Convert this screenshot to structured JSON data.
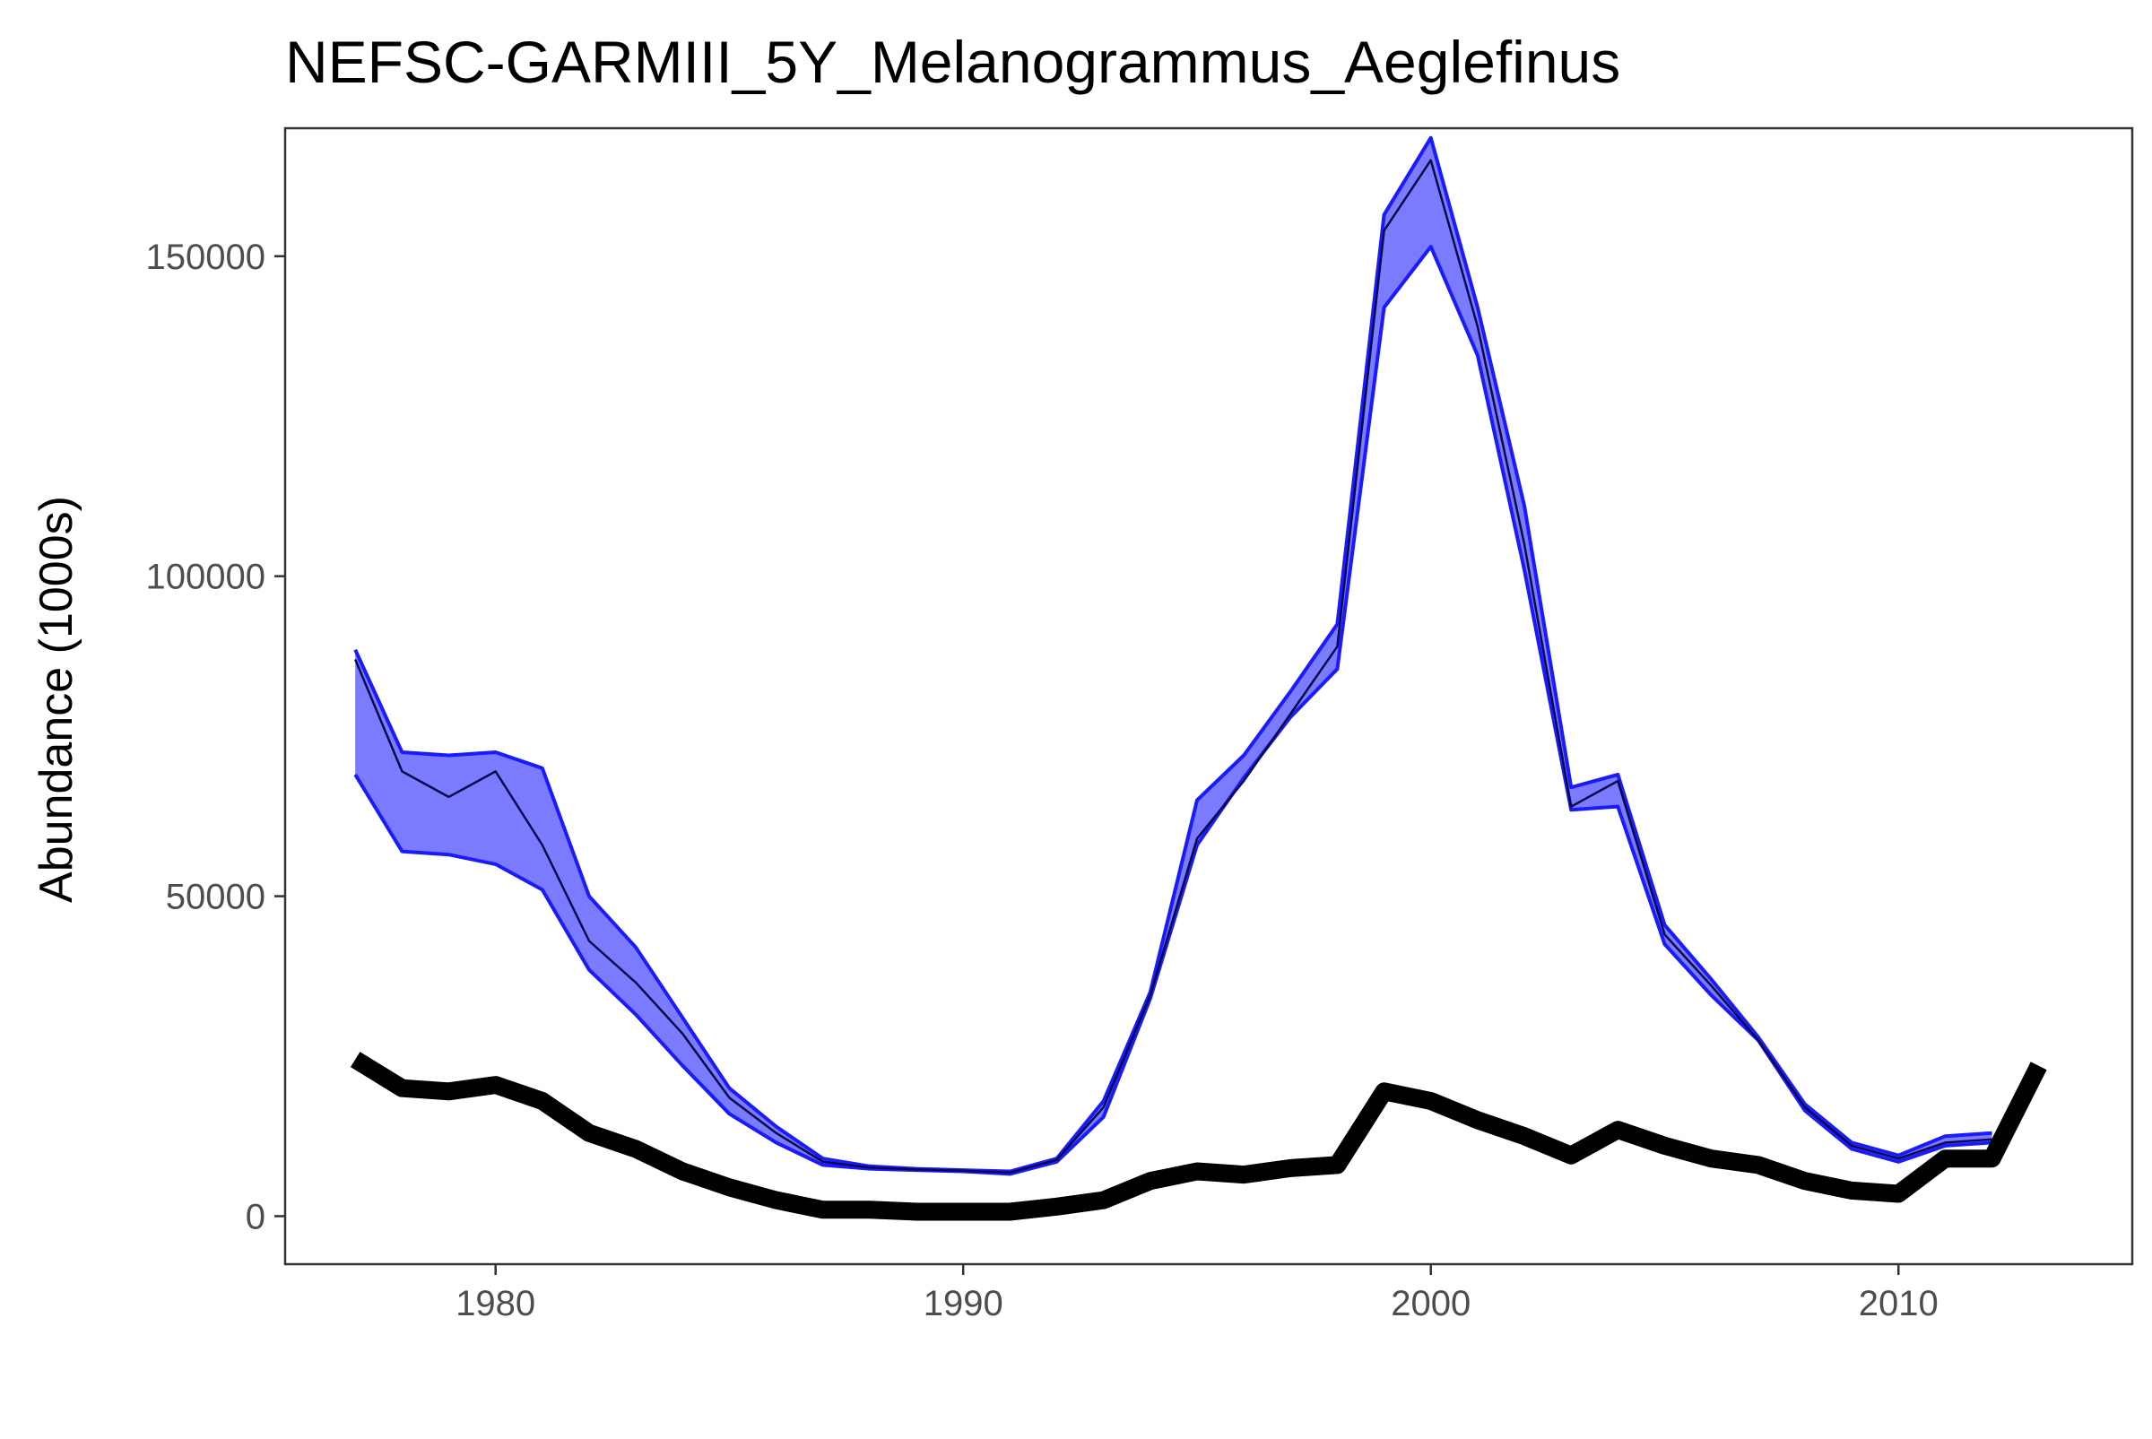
{
  "chart_data": {
    "type": "line",
    "title": "NEFSC-GARMIII_5Y_Melanogrammus_Aeglefinus",
    "xlabel": "",
    "ylabel": "Abundance (1000s)",
    "xlim": [
      1975.5,
      2015
    ],
    "ylim": [
      -7500,
      170000
    ],
    "xticks": [
      1980,
      1990,
      2000,
      2010
    ],
    "yticks": [
      0,
      50000,
      100000,
      150000
    ],
    "xtick_labels": [
      "1980",
      "1990",
      "2000",
      "2010"
    ],
    "ytick_labels": [
      "0",
      "50000",
      "100000",
      "150000"
    ],
    "grid": false,
    "legend": "none",
    "colors": {
      "band_fill": "#7b7bff",
      "band_edge": "#1a1aff",
      "estimate_line": "#0a0a4a",
      "observed_line": "#000000",
      "panel_border": "#333333"
    },
    "estimate_band": {
      "x": [
        1977,
        1978,
        1979,
        1980,
        1981,
        1982,
        1983,
        1984,
        1985,
        1986,
        1987,
        1988,
        1989,
        1990,
        1991,
        1992,
        1993,
        1994,
        1995,
        1996,
        1997,
        1998,
        1999,
        2000,
        2001,
        2002,
        2003,
        2004,
        2005,
        2006,
        2007,
        2008,
        2009,
        2010,
        2011,
        2012
      ],
      "upper": [
        88500,
        72500,
        72000,
        72500,
        70000,
        50000,
        42000,
        31000,
        20000,
        14000,
        9000,
        7800,
        7400,
        7200,
        7000,
        9000,
        18000,
        35000,
        65000,
        72000,
        82000,
        92500,
        156500,
        168500,
        142000,
        111000,
        67000,
        69000,
        45500,
        37000,
        28000,
        17500,
        11500,
        9500,
        12500,
        13000
      ],
      "middle": [
        87000,
        69500,
        65500,
        69500,
        58000,
        43000,
        36500,
        28500,
        18500,
        13000,
        8500,
        7600,
        7300,
        7100,
        6800,
        8800,
        17000,
        34500,
        59000,
        68000,
        78500,
        89000,
        154000,
        165000,
        139000,
        105000,
        64000,
        68000,
        44000,
        36000,
        27500,
        17000,
        11000,
        9000,
        11500,
        12000
      ],
      "lower": [
        69000,
        57000,
        56500,
        55000,
        51000,
        38500,
        31500,
        23500,
        16000,
        11500,
        8000,
        7400,
        7200,
        7000,
        6600,
        8500,
        15500,
        34000,
        58000,
        68500,
        78000,
        85500,
        142000,
        151500,
        134500,
        101000,
        63500,
        64000,
        42500,
        34500,
        27500,
        16500,
        10500,
        8500,
        11000,
        11500
      ]
    },
    "observed": {
      "x": [
        1977,
        1978,
        1979,
        1980,
        1981,
        1982,
        1983,
        1984,
        1985,
        1986,
        1987,
        1988,
        1989,
        1990,
        1991,
        1992,
        1993,
        1994,
        1995,
        1996,
        1997,
        1998,
        1999,
        2000,
        2001,
        2002,
        2003,
        2004,
        2005,
        2006,
        2007,
        2008,
        2009,
        2010,
        2011,
        2012,
        2013
      ],
      "values": [
        24500,
        20000,
        19500,
        20500,
        18000,
        13000,
        10500,
        7000,
        4500,
        2500,
        1000,
        1000,
        700,
        700,
        700,
        1500,
        2500,
        5500,
        7000,
        6500,
        7500,
        8000,
        19500,
        18000,
        15000,
        12500,
        9500,
        13500,
        11000,
        9000,
        8000,
        5500,
        4000,
        3500,
        9000,
        9000,
        23500
      ]
    }
  }
}
